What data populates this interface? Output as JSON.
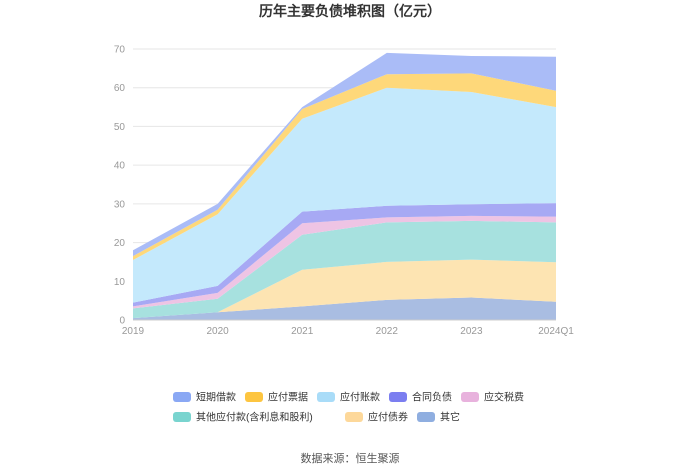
{
  "chart_data": {
    "type": "area",
    "stacked": true,
    "title": "历年主要负债堆积图（亿元）",
    "categories": [
      "2019",
      "2020",
      "2021",
      "2022",
      "2023",
      "2024Q1"
    ],
    "ylim": [
      0,
      70
    ],
    "yticks": [
      "0",
      "10",
      "20",
      "30",
      "40",
      "50",
      "60",
      "70"
    ],
    "grid": true,
    "legend_position": "bottom",
    "series": [
      {
        "name": "其它",
        "color": "#a9bde2",
        "values": [
          0.5,
          2.0,
          3.5,
          5.2,
          5.8,
          4.7
        ]
      },
      {
        "name": "应付债券",
        "color": "#fde4b2",
        "values": [
          0.0,
          0.0,
          9.5,
          9.8,
          9.8,
          10.2
        ]
      },
      {
        "name": "其他应付款(含利息和股利)",
        "color": "#a7e1df",
        "values": [
          2.5,
          3.5,
          9.0,
          10.2,
          10.0,
          10.3
        ]
      },
      {
        "name": "应交税费",
        "color": "#eec4e4",
        "values": [
          0.5,
          1.5,
          3.0,
          1.3,
          1.3,
          1.5
        ]
      },
      {
        "name": "合同负债",
        "color": "#a7a9f4",
        "values": [
          1.0,
          1.8,
          3.0,
          3.0,
          3.0,
          3.5
        ]
      },
      {
        "name": "应付账款",
        "color": "#c4e9fc",
        "values": [
          11.0,
          18.5,
          24.0,
          30.5,
          29.0,
          24.8
        ]
      },
      {
        "name": "应付票据",
        "color": "#fed87a",
        "values": [
          1.0,
          1.2,
          2.5,
          3.5,
          4.8,
          4.2
        ]
      },
      {
        "name": "短期借款",
        "color": "#aabcf7",
        "values": [
          1.5,
          1.5,
          0.5,
          5.5,
          4.5,
          8.8
        ]
      }
    ],
    "legend": [
      {
        "name": "短期借款",
        "color": "#8aa8f4"
      },
      {
        "name": "应付票据",
        "color": "#fdc540"
      },
      {
        "name": "应付账款",
        "color": "#a9dcf8"
      },
      {
        "name": "合同负债",
        "color": "#7b7ef0"
      },
      {
        "name": "应交税费",
        "color": "#e8b2dd"
      },
      {
        "name": "其他应付款(含利息和股利)",
        "color": "#79d4cf"
      },
      {
        "name": "应付债券",
        "color": "#fdd89a"
      },
      {
        "name": "其它",
        "color": "#8faee0"
      }
    ],
    "source": "数据来源：恒生聚源"
  }
}
